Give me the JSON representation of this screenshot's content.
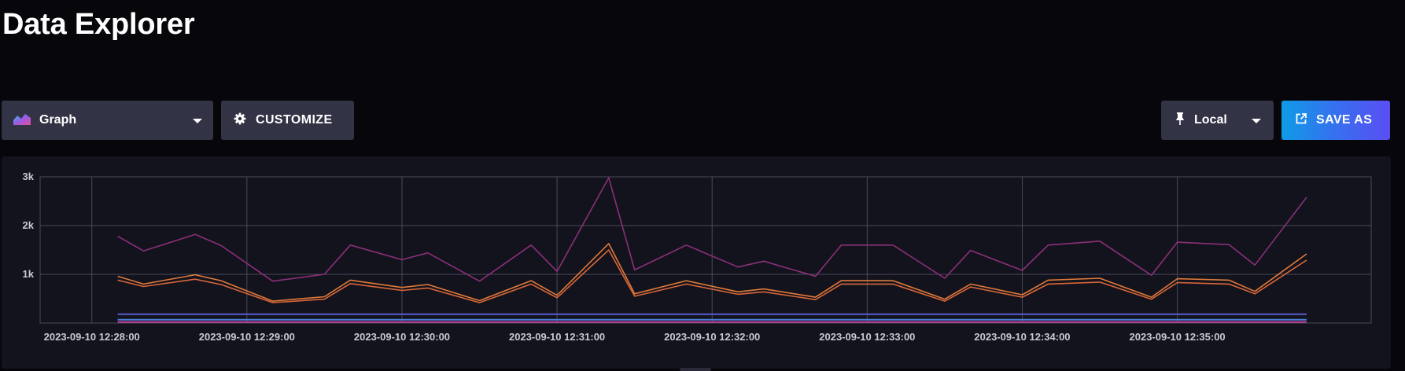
{
  "header": {
    "title": "Data Explorer"
  },
  "toolbar": {
    "graph_type": "Graph",
    "customize_label": "CUSTOMIZE",
    "timezone": "Local",
    "save_as_label": "SAVE AS"
  },
  "colors": {
    "accent_gradient": [
      "#0f9be6",
      "#5a4ff2"
    ],
    "grid": "#4a4a5c",
    "series_purple": "#8b2f7a",
    "series_orange_a": "#e07a3a",
    "series_orange_b": "#d9663a",
    "series_blue": "#5a5ad0"
  },
  "chart_data": {
    "type": "line",
    "title": "",
    "xlabel": "",
    "ylabel": "",
    "ylim": [
      0,
      3000
    ],
    "yticks": [
      1000,
      2000,
      3000
    ],
    "ytick_labels": [
      "1k",
      "2k",
      "3k"
    ],
    "xlim": [
      "2023-09-10 12:27:40",
      "2023-09-10 12:36:15"
    ],
    "xticks": [
      "2023-09-10 12:28:00",
      "2023-09-10 12:29:00",
      "2023-09-10 12:30:00",
      "2023-09-10 12:31:00",
      "2023-09-10 12:32:00",
      "2023-09-10 12:33:00",
      "2023-09-10 12:34:00",
      "2023-09-10 12:35:00"
    ],
    "grid": true,
    "x": [
      "2023-09-10 12:28:10",
      "2023-09-10 12:28:20",
      "2023-09-10 12:28:40",
      "2023-09-10 12:28:50",
      "2023-09-10 12:29:10",
      "2023-09-10 12:29:30",
      "2023-09-10 12:29:40",
      "2023-09-10 12:30:00",
      "2023-09-10 12:30:10",
      "2023-09-10 12:30:30",
      "2023-09-10 12:30:50",
      "2023-09-10 12:31:00",
      "2023-09-10 12:31:20",
      "2023-09-10 12:31:30",
      "2023-09-10 12:31:50",
      "2023-09-10 12:32:10",
      "2023-09-10 12:32:20",
      "2023-09-10 12:32:40",
      "2023-09-10 12:32:50",
      "2023-09-10 12:33:10",
      "2023-09-10 12:33:30",
      "2023-09-10 12:33:40",
      "2023-09-10 12:34:00",
      "2023-09-10 12:34:10",
      "2023-09-10 12:34:30",
      "2023-09-10 12:34:50",
      "2023-09-10 12:35:00",
      "2023-09-10 12:35:20",
      "2023-09-10 12:35:30",
      "2023-09-10 12:35:50"
    ],
    "series": [
      {
        "color": "#8b2f7a",
        "values": [
          1780,
          1480,
          1820,
          1590,
          860,
          1000,
          1600,
          1300,
          1440,
          860,
          1600,
          1060,
          2980,
          1090,
          1600,
          1150,
          1270,
          960,
          1600,
          1600,
          920,
          1490,
          1080,
          1600,
          1680,
          980,
          1660,
          1610,
          1190,
          2580
        ]
      },
      {
        "color": "#e07a3a",
        "values": [
          960,
          800,
          990,
          870,
          450,
          540,
          880,
          730,
          790,
          460,
          870,
          570,
          1630,
          600,
          870,
          640,
          700,
          530,
          870,
          870,
          490,
          800,
          580,
          880,
          920,
          530,
          910,
          880,
          650,
          1420
        ]
      },
      {
        "color": "#d9663a",
        "values": [
          880,
          750,
          900,
          790,
          420,
          490,
          810,
          670,
          720,
          420,
          800,
          520,
          1500,
          550,
          800,
          590,
          640,
          480,
          800,
          800,
          450,
          740,
          530,
          800,
          840,
          490,
          830,
          800,
          600,
          1290
        ]
      },
      {
        "color": "#5a5ad0",
        "values": [
          180,
          180,
          180,
          180,
          180,
          180,
          180,
          180,
          180,
          180,
          180,
          180,
          180,
          180,
          180,
          180,
          180,
          180,
          180,
          180,
          180,
          180,
          180,
          180,
          180,
          180,
          180,
          180,
          180,
          180
        ]
      },
      {
        "color": "#4b7fd8",
        "values": [
          70,
          70,
          70,
          70,
          70,
          70,
          70,
          70,
          70,
          70,
          70,
          70,
          70,
          70,
          70,
          70,
          70,
          70,
          70,
          70,
          70,
          70,
          70,
          70,
          70,
          70,
          70,
          70,
          70,
          70
        ]
      },
      {
        "color": "#c0409a",
        "values": [
          20,
          20,
          20,
          20,
          20,
          20,
          20,
          20,
          20,
          20,
          20,
          20,
          20,
          20,
          20,
          20,
          20,
          20,
          20,
          20,
          20,
          20,
          20,
          20,
          20,
          20,
          20,
          20,
          20,
          20
        ]
      }
    ]
  }
}
